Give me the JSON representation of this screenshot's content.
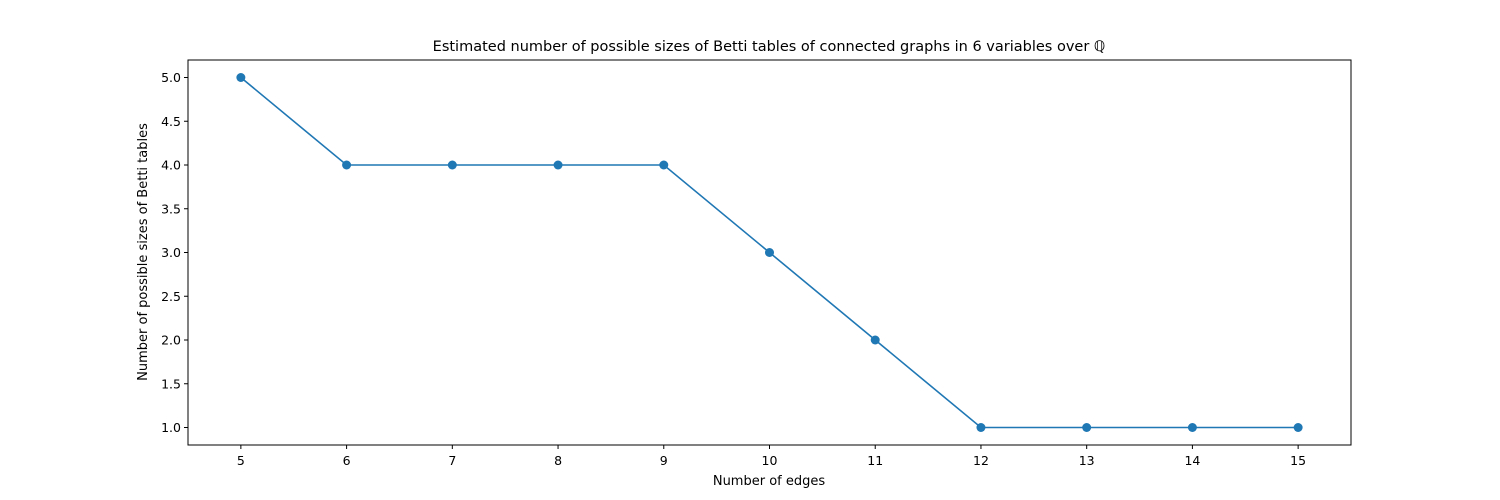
{
  "chart_data": {
    "type": "line",
    "title": "Estimated number of possible sizes of Betti tables of connected graphs in 6 variables over ℚ",
    "xlabel": "Number of edges",
    "ylabel": "Number of possible sizes of Betti tables",
    "x": [
      5,
      6,
      7,
      8,
      9,
      10,
      11,
      12,
      13,
      14,
      15
    ],
    "series": [
      {
        "values": [
          5,
          4,
          4,
          4,
          4,
          3,
          2,
          1,
          1,
          1,
          1
        ],
        "color": "#1f77b4",
        "marker": "circle"
      }
    ],
    "xticks": [
      "5",
      "6",
      "7",
      "8",
      "9",
      "10",
      "11",
      "12",
      "13",
      "14",
      "15"
    ],
    "yticks": [
      "1.0",
      "1.5",
      "2.0",
      "2.5",
      "3.0",
      "3.5",
      "4.0",
      "4.5",
      "5.0"
    ],
    "xlim": [
      4.5,
      15.5
    ],
    "ylim": [
      0.8,
      5.2
    ],
    "grid": false,
    "legend": "none"
  }
}
